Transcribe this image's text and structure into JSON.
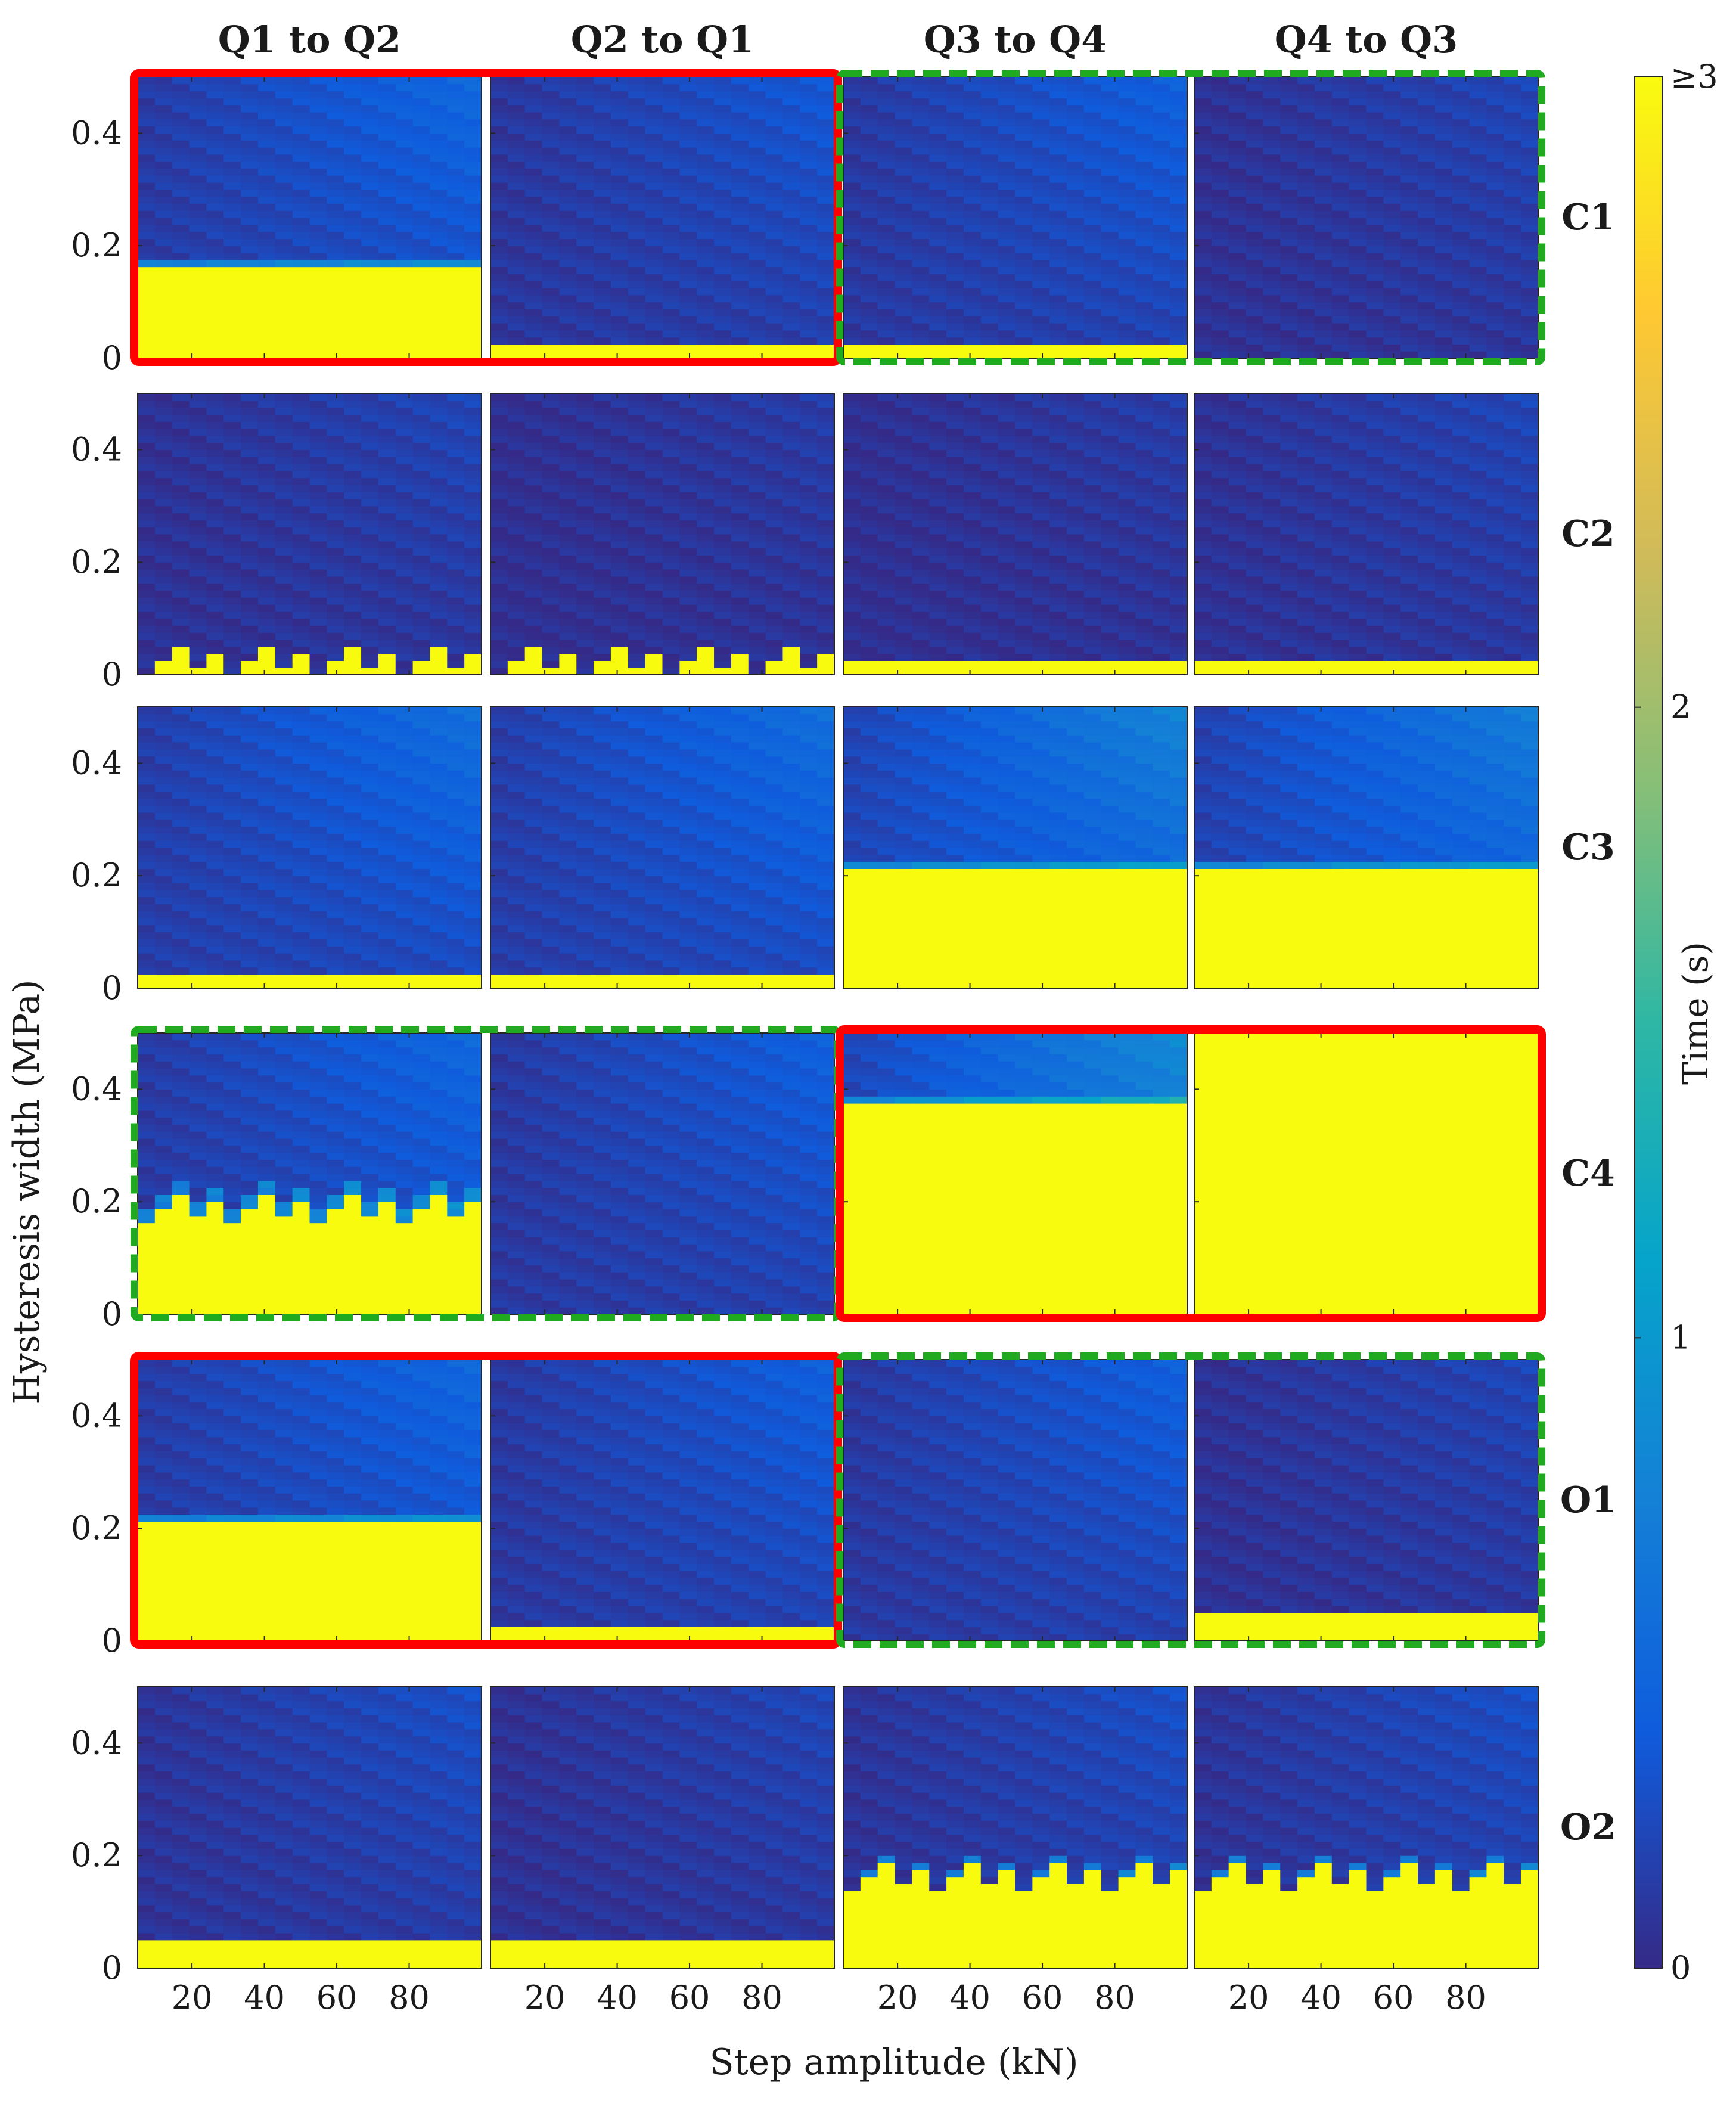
{
  "chart_data": {
    "type": "heatmap",
    "title": "",
    "columns": [
      "Q1 to Q2",
      "Q2 to Q1",
      "Q3 to Q4",
      "Q4 to Q3"
    ],
    "rows": [
      "C1",
      "C2",
      "C3",
      "C4",
      "O1",
      "O2"
    ],
    "xlabel": "Step amplitude (kN)",
    "ylabel": "Hysteresis width (MPa)",
    "xticks": [
      "20",
      "40",
      "60",
      "80"
    ],
    "xtick_values": [
      20,
      40,
      60,
      80
    ],
    "xlim": [
      5,
      100
    ],
    "yticks": [
      "0",
      "0.2",
      "0.4"
    ],
    "ytick_values": [
      0,
      0.2,
      0.4
    ],
    "ylim": [
      0,
      0.5
    ],
    "colorbar": {
      "label": "Time (s)",
      "ticks": [
        "0",
        "1",
        "2",
        "≥3"
      ],
      "tick_values": [
        0,
        1,
        2,
        3
      ],
      "range": [
        0,
        3
      ],
      "colormap": "parula",
      "colors": [
        "#352a87",
        "#0f5cdd",
        "#1481d6",
        "#06a4ca",
        "#2eb7a4",
        "#87bf77",
        "#d1bb59",
        "#fec832",
        "#f9fb0e"
      ]
    },
    "highlight_styles": {
      "red-solid": "#ff0000",
      "green-dashed": "#1faa1f"
    },
    "highlights": [
      {
        "row": "C1",
        "columns": [
          "Q1 to Q2",
          "Q2 to Q1"
        ],
        "style": "red-solid"
      },
      {
        "row": "C1",
        "columns": [
          "Q3 to Q4",
          "Q4 to Q3"
        ],
        "style": "green-dashed"
      },
      {
        "row": "C4",
        "columns": [
          "Q1 to Q2",
          "Q2 to Q1"
        ],
        "style": "green-dashed"
      },
      {
        "row": "C4",
        "columns": [
          "Q3 to Q4",
          "Q4 to Q3"
        ],
        "style": "red-solid"
      },
      {
        "row": "O1",
        "columns": [
          "Q1 to Q2",
          "Q2 to Q1"
        ],
        "style": "red-solid"
      },
      {
        "row": "O1",
        "columns": [
          "Q3 to Q4",
          "Q4 to Q3"
        ],
        "style": "green-dashed"
      }
    ],
    "panels": [
      {
        "row": "C1",
        "column": "Q1 to Q2",
        "threshold_mpa": 0.16,
        "base_s": 0.35,
        "jagged": false
      },
      {
        "row": "C1",
        "column": "Q2 to Q1",
        "threshold_mpa": 0.03,
        "base_s": 0.25,
        "jagged": false
      },
      {
        "row": "C1",
        "column": "Q3 to Q4",
        "threshold_mpa": 0.02,
        "base_s": 0.3,
        "jagged": false
      },
      {
        "row": "C1",
        "column": "Q4 to Q3",
        "threshold_mpa": 0.0,
        "base_s": 0.15,
        "jagged": false
      },
      {
        "row": "C2",
        "column": "Q1 to Q2",
        "threshold_mpa": 0.03,
        "base_s": 0.15,
        "jagged": true
      },
      {
        "row": "C2",
        "column": "Q2 to Q1",
        "threshold_mpa": 0.03,
        "base_s": 0.1,
        "jagged": true
      },
      {
        "row": "C2",
        "column": "Q3 to Q4",
        "threshold_mpa": 0.02,
        "base_s": 0.1,
        "jagged": false
      },
      {
        "row": "C2",
        "column": "Q4 to Q3",
        "threshold_mpa": 0.02,
        "base_s": 0.15,
        "jagged": false
      },
      {
        "row": "C3",
        "column": "Q1 to Q2",
        "threshold_mpa": 0.03,
        "base_s": 0.4,
        "jagged": false
      },
      {
        "row": "C3",
        "column": "Q2 to Q1",
        "threshold_mpa": 0.03,
        "base_s": 0.4,
        "jagged": false
      },
      {
        "row": "C3",
        "column": "Q3 to Q4",
        "threshold_mpa": 0.21,
        "base_s": 0.55,
        "jagged": false
      },
      {
        "row": "C3",
        "column": "Q4 to Q3",
        "threshold_mpa": 0.21,
        "base_s": 0.5,
        "jagged": false
      },
      {
        "row": "C4",
        "column": "Q1 to Q2",
        "threshold_mpa": 0.19,
        "base_s": 0.35,
        "jagged": true
      },
      {
        "row": "C4",
        "column": "Q2 to Q1",
        "threshold_mpa": 0.0,
        "base_s": 0.3,
        "jagged": false
      },
      {
        "row": "C4",
        "column": "Q3 to Q4",
        "threshold_mpa": 0.37,
        "base_s": 0.6,
        "jagged": false
      },
      {
        "row": "C4",
        "column": "Q4 to Q3",
        "threshold_mpa": 0.0,
        "base_s": 3.0,
        "jagged": false
      },
      {
        "row": "O1",
        "column": "Q1 to Q2",
        "threshold_mpa": 0.21,
        "base_s": 0.35,
        "jagged": false
      },
      {
        "row": "O1",
        "column": "Q2 to Q1",
        "threshold_mpa": 0.03,
        "base_s": 0.3,
        "jagged": false
      },
      {
        "row": "O1",
        "column": "Q3 to Q4",
        "threshold_mpa": 0.0,
        "base_s": 0.3,
        "jagged": false
      },
      {
        "row": "O1",
        "column": "Q4 to Q3",
        "threshold_mpa": 0.05,
        "base_s": 0.15,
        "jagged": false
      },
      {
        "row": "O2",
        "column": "Q1 to Q2",
        "threshold_mpa": 0.05,
        "base_s": 0.2,
        "jagged": false
      },
      {
        "row": "O2",
        "column": "Q2 to Q1",
        "threshold_mpa": 0.05,
        "base_s": 0.15,
        "jagged": false
      },
      {
        "row": "O2",
        "column": "Q3 to Q4",
        "threshold_mpa": 0.16,
        "base_s": 0.2,
        "jagged": true
      },
      {
        "row": "O2",
        "column": "Q4 to Q3",
        "threshold_mpa": 0.16,
        "base_s": 0.2,
        "jagged": true
      }
    ]
  }
}
